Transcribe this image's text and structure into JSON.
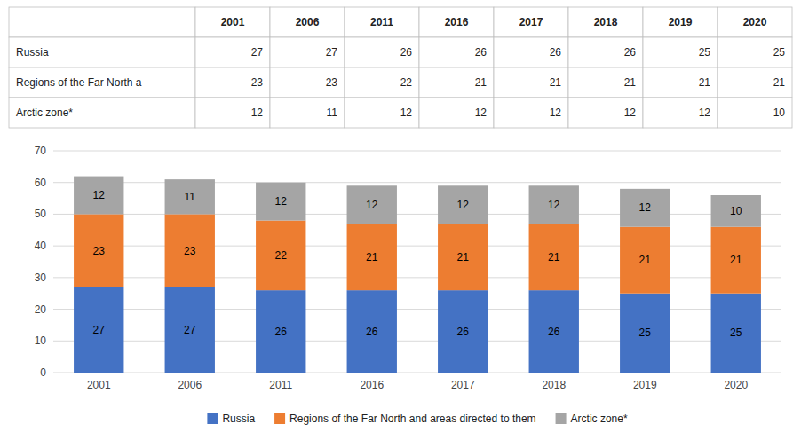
{
  "chart_data": [
    {
      "type": "table",
      "categories": [
        "2001",
        "2006",
        "2011",
        "2016",
        "2017",
        "2018",
        "2019",
        "2020"
      ],
      "series": [
        {
          "name": "Russia",
          "values": [
            27,
            27,
            26,
            26,
            26,
            26,
            25,
            25
          ]
        },
        {
          "name": "Regions of the Far North a",
          "values": [
            23,
            23,
            22,
            21,
            21,
            21,
            21,
            21
          ]
        },
        {
          "name": "Arctic zone*",
          "values": [
            12,
            11,
            12,
            12,
            12,
            12,
            12,
            10
          ]
        }
      ]
    },
    {
      "type": "bar",
      "stacked": true,
      "data_labels": true,
      "grid": true,
      "legend": "bottom",
      "categories": [
        "2001",
        "2006",
        "2011",
        "2016",
        "2017",
        "2018",
        "2019",
        "2020"
      ],
      "series": [
        {
          "name": "Russia",
          "color": "#4472C4",
          "values": [
            27,
            27,
            26,
            26,
            26,
            26,
            25,
            25
          ]
        },
        {
          "name": "Regions of the Far North and areas directed to them",
          "color": "#ED7D31",
          "values": [
            23,
            23,
            22,
            21,
            21,
            21,
            21,
            21
          ]
        },
        {
          "name": "Arctic zone*",
          "color": "#A5A5A5",
          "values": [
            12,
            11,
            12,
            12,
            12,
            12,
            12,
            10
          ]
        }
      ],
      "ylim": [
        0,
        70
      ],
      "yticks": [
        0,
        10,
        20,
        30,
        40,
        50,
        60,
        70
      ]
    }
  ]
}
